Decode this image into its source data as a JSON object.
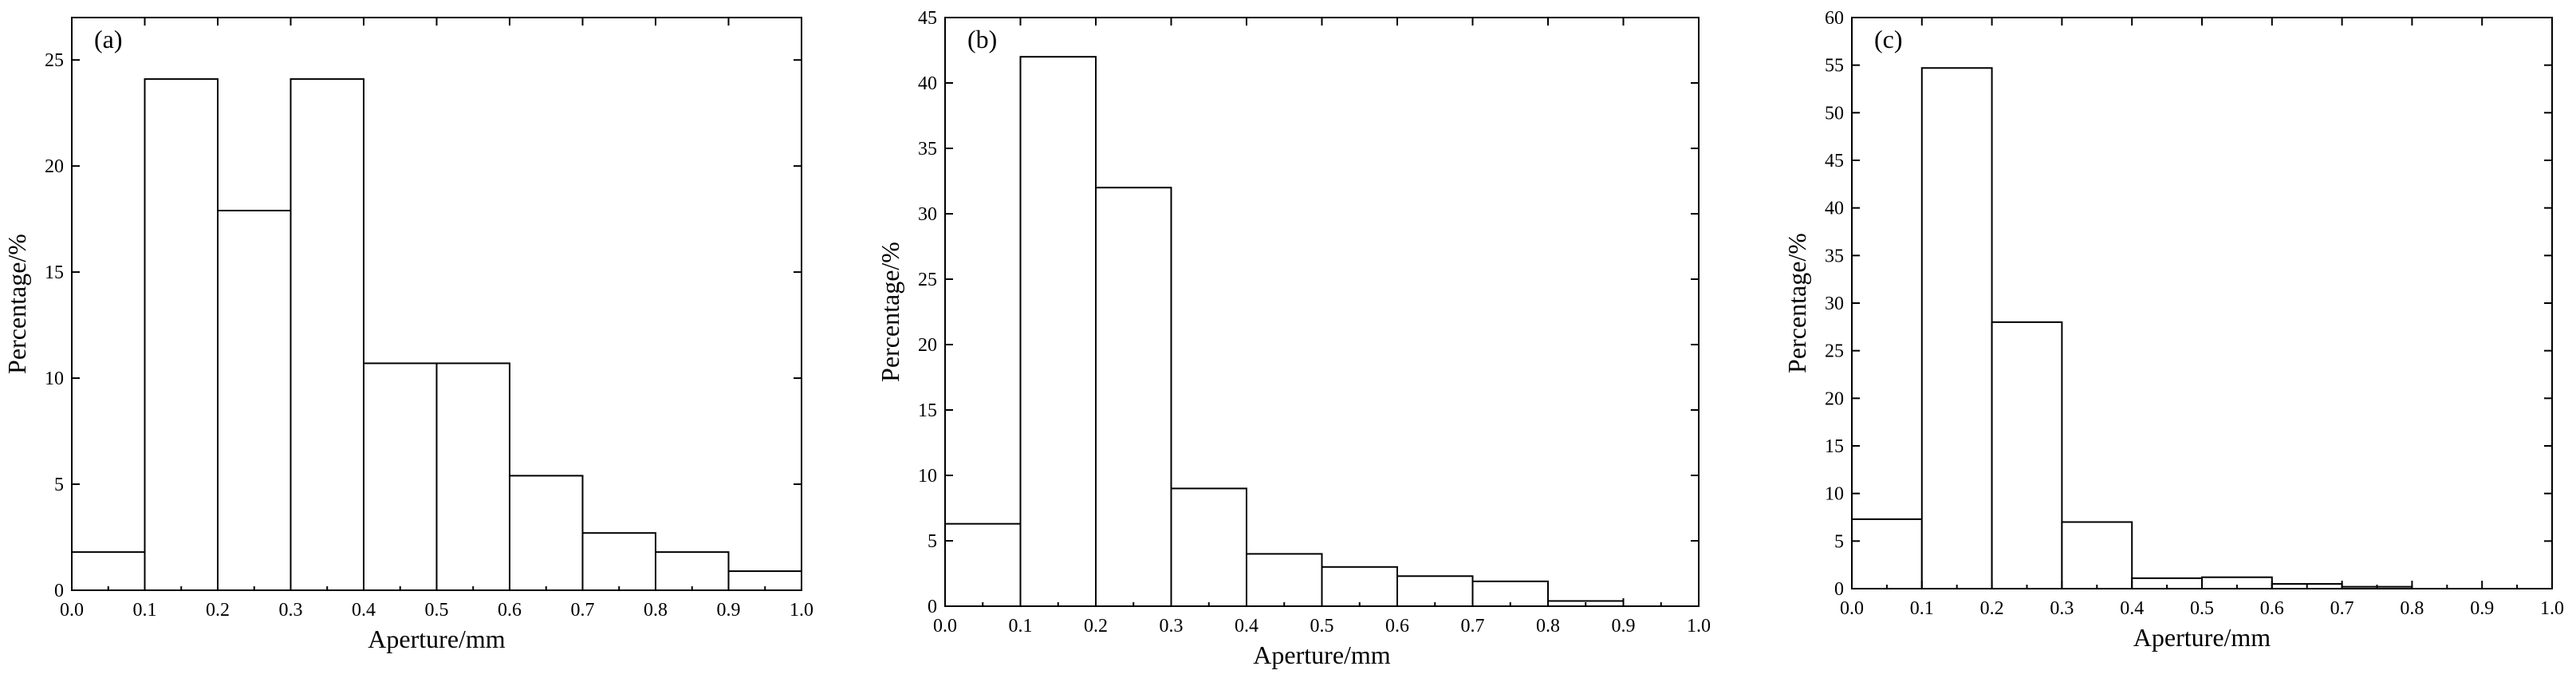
{
  "chart_data": [
    {
      "type": "bar",
      "panel_label": "(a)",
      "xlabel": "Aperture/mm",
      "ylabel": "Percentage/%",
      "xlim": [
        0.0,
        1.0
      ],
      "ylim": [
        0,
        27
      ],
      "xticks": [
        "0.0",
        "0.1",
        "0.2",
        "0.3",
        "0.4",
        "0.5",
        "0.6",
        "0.7",
        "0.8",
        "0.9",
        "1.0"
      ],
      "yticks": [
        "0",
        "5",
        "10",
        "15",
        "20",
        "25"
      ],
      "bin_width": 0.1,
      "bins_start": [
        0.0,
        0.1,
        0.2,
        0.3,
        0.4,
        0.5,
        0.6,
        0.7,
        0.8,
        0.9
      ],
      "values": [
        1.8,
        24.1,
        17.9,
        24.1,
        10.7,
        10.7,
        5.4,
        2.7,
        1.8,
        0.9
      ],
      "grid": false,
      "legend": "none"
    },
    {
      "type": "bar",
      "panel_label": "(b)",
      "xlabel": "Aperture/mm",
      "ylabel": "Percentage/%",
      "xlim": [
        0.0,
        1.0
      ],
      "ylim": [
        0,
        45
      ],
      "xticks": [
        "0.0",
        "0.1",
        "0.2",
        "0.3",
        "0.4",
        "0.5",
        "0.6",
        "0.7",
        "0.8",
        "0.9",
        "1.0"
      ],
      "yticks": [
        "0",
        "5",
        "10",
        "15",
        "20",
        "25",
        "30",
        "35",
        "40",
        "45"
      ],
      "bin_width": 0.1,
      "bins_start": [
        0.0,
        0.1,
        0.2,
        0.3,
        0.4,
        0.5,
        0.6,
        0.7,
        0.8
      ],
      "values": [
        6.3,
        42.0,
        32.0,
        9.0,
        4.0,
        3.0,
        2.3,
        1.9,
        0.4
      ],
      "grid": false,
      "legend": "none"
    },
    {
      "type": "bar",
      "panel_label": "(c)",
      "xlabel": "Aperture/mm",
      "ylabel": "Percentage/%",
      "xlim": [
        0.0,
        1.0
      ],
      "ylim": [
        0,
        60
      ],
      "xticks": [
        "0.0",
        "0.1",
        "0.2",
        "0.3",
        "0.4",
        "0.5",
        "0.6",
        "0.7",
        "0.8",
        "0.9",
        "1.0"
      ],
      "yticks": [
        "0",
        "5",
        "10",
        "15",
        "20",
        "25",
        "30",
        "35",
        "40",
        "45",
        "50",
        "55",
        "60"
      ],
      "bin_width": 0.1,
      "bins_start": [
        0.0,
        0.1,
        0.2,
        0.3,
        0.4,
        0.5,
        0.6,
        0.7
      ],
      "values": [
        7.3,
        54.7,
        28.0,
        7.0,
        1.1,
        1.2,
        0.5,
        0.2
      ],
      "grid": false,
      "legend": "none"
    }
  ]
}
